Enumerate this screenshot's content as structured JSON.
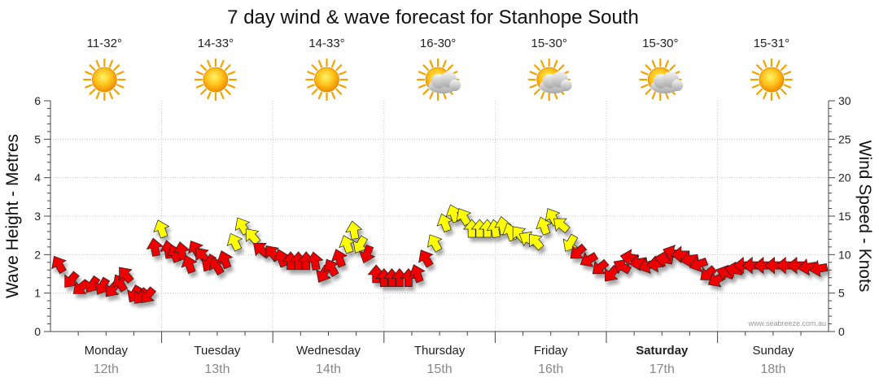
{
  "chart_data": {
    "type": "line",
    "title": "7 day wind & wave forecast for Stanhope South",
    "ylabel_left": "Wave Height - Metres",
    "ylabel_right": "Wind Speed - Knots",
    "ylim_left": [
      0,
      6
    ],
    "ylim_right": [
      0,
      30
    ],
    "yticks_left": [
      "0",
      "1",
      "2",
      "3",
      "4",
      "5",
      "6"
    ],
    "yticks_right": [
      "0",
      "5",
      "10",
      "15",
      "20",
      "25",
      "30"
    ],
    "days": [
      {
        "name": "Monday",
        "date": "12th",
        "temp": "11-32°",
        "weather": "sunny",
        "bold": false
      },
      {
        "name": "Tuesday",
        "date": "13th",
        "temp": "14-33°",
        "weather": "sunny",
        "bold": false
      },
      {
        "name": "Wednesday",
        "date": "14th",
        "temp": "14-33°",
        "weather": "sunny",
        "bold": false
      },
      {
        "name": "Thursday",
        "date": "15th",
        "temp": "16-30°",
        "weather": "partly-cloudy",
        "bold": false
      },
      {
        "name": "Friday",
        "date": "16th",
        "temp": "15-30°",
        "weather": "partly-cloudy",
        "bold": false
      },
      {
        "name": "Saturday",
        "date": "17th",
        "temp": "15-30°",
        "weather": "partly-cloudy",
        "bold": true
      },
      {
        "name": "Sunday",
        "date": "18th",
        "temp": "15-31°",
        "weather": "sunny",
        "bold": false
      }
    ],
    "series": [
      {
        "name": "Wind speed (knots)",
        "color_low": "#ee0000",
        "color_high": "#ffff00",
        "points": [
          {
            "t": 0.08,
            "v": 8.6,
            "dir": -30
          },
          {
            "t": 0.19,
            "v": 6.8,
            "dir": -140
          },
          {
            "t": 0.28,
            "v": 5.8,
            "dir": -130
          },
          {
            "t": 0.38,
            "v": 6.2,
            "dir": -145
          },
          {
            "t": 0.47,
            "v": 6.0,
            "dir": -150
          },
          {
            "t": 0.56,
            "v": 5.6,
            "dir": -140
          },
          {
            "t": 0.63,
            "v": 6.2,
            "dir": -30
          },
          {
            "t": 0.68,
            "v": 7.3,
            "dir": -40
          },
          {
            "t": 0.76,
            "v": 5.0,
            "dir": -150
          },
          {
            "t": 0.82,
            "v": 4.7,
            "dir": -140
          },
          {
            "t": 0.88,
            "v": 4.8,
            "dir": -140
          },
          {
            "t": 0.94,
            "v": 10.8,
            "dir": -10
          },
          {
            "t": 1.0,
            "v": 13.2,
            "dir": -20
          },
          {
            "t": 1.06,
            "v": 10.5,
            "dir": -10
          },
          {
            "t": 1.12,
            "v": 10.0,
            "dir": -20
          },
          {
            "t": 1.18,
            "v": 10.3,
            "dir": -10
          },
          {
            "t": 1.25,
            "v": 8.6,
            "dir": -20
          },
          {
            "t": 1.31,
            "v": 10.6,
            "dir": -30
          },
          {
            "t": 1.37,
            "v": 9.8,
            "dir": -40
          },
          {
            "t": 1.43,
            "v": 9.0,
            "dir": -150
          },
          {
            "t": 1.5,
            "v": 8.4,
            "dir": -30
          },
          {
            "t": 1.57,
            "v": 9.2,
            "dir": -20
          },
          {
            "t": 1.66,
            "v": 11.5,
            "dir": -25
          },
          {
            "t": 1.73,
            "v": 13.6,
            "dir": -30
          },
          {
            "t": 1.82,
            "v": 12.3,
            "dir": -40
          },
          {
            "t": 1.9,
            "v": 10.6,
            "dir": -50
          },
          {
            "t": 2.0,
            "v": 10.1,
            "dir": -40
          },
          {
            "t": 2.08,
            "v": 9.4,
            "dir": -20
          },
          {
            "t": 2.16,
            "v": 9.0,
            "dir": 0
          },
          {
            "t": 2.23,
            "v": 9.0,
            "dir": 0
          },
          {
            "t": 2.3,
            "v": 9.0,
            "dir": 0
          },
          {
            "t": 2.38,
            "v": 9.0,
            "dir": -10
          },
          {
            "t": 2.46,
            "v": 7.6,
            "dir": -150
          },
          {
            "t": 2.53,
            "v": 8.2,
            "dir": -30
          },
          {
            "t": 2.6,
            "v": 9.4,
            "dir": -20
          },
          {
            "t": 2.67,
            "v": 11.2,
            "dir": -20
          },
          {
            "t": 2.73,
            "v": 13.0,
            "dir": -10
          },
          {
            "t": 2.79,
            "v": 11.4,
            "dir": -150
          },
          {
            "t": 2.85,
            "v": 10.2,
            "dir": -160
          },
          {
            "t": 2.93,
            "v": 7.3,
            "dir": 0
          },
          {
            "t": 3.0,
            "v": 6.8,
            "dir": 0
          },
          {
            "t": 3.07,
            "v": 6.8,
            "dir": 0
          },
          {
            "t": 3.14,
            "v": 6.8,
            "dir": 0
          },
          {
            "t": 3.22,
            "v": 6.8,
            "dir": 0
          },
          {
            "t": 3.3,
            "v": 7.4,
            "dir": -20
          },
          {
            "t": 3.38,
            "v": 9.4,
            "dir": -30
          },
          {
            "t": 3.46,
            "v": 11.4,
            "dir": -30
          },
          {
            "t": 3.55,
            "v": 14.0,
            "dir": -20
          },
          {
            "t": 3.63,
            "v": 15.2,
            "dir": -20
          },
          {
            "t": 3.72,
            "v": 14.8,
            "dir": -30
          },
          {
            "t": 3.79,
            "v": 13.2,
            "dir": 0
          },
          {
            "t": 3.86,
            "v": 13.2,
            "dir": 0
          },
          {
            "t": 3.93,
            "v": 13.2,
            "dir": 0
          },
          {
            "t": 4.0,
            "v": 13.2,
            "dir": -10
          },
          {
            "t": 4.07,
            "v": 13.6,
            "dir": -10
          },
          {
            "t": 4.14,
            "v": 12.8,
            "dir": -20
          },
          {
            "t": 4.22,
            "v": 12.6,
            "dir": -40
          },
          {
            "t": 4.3,
            "v": 12.0,
            "dir": -60
          },
          {
            "t": 4.37,
            "v": 11.6,
            "dir": -40
          },
          {
            "t": 4.44,
            "v": 13.6,
            "dir": -20
          },
          {
            "t": 4.52,
            "v": 14.8,
            "dir": -30
          },
          {
            "t": 4.6,
            "v": 13.8,
            "dir": -50
          },
          {
            "t": 4.68,
            "v": 11.6,
            "dir": -150
          },
          {
            "t": 4.75,
            "v": 10.4,
            "dir": -130
          },
          {
            "t": 4.85,
            "v": 9.4,
            "dir": -120
          },
          {
            "t": 4.95,
            "v": 8.4,
            "dir": -130
          },
          {
            "t": 5.05,
            "v": 7.6,
            "dir": -140
          },
          {
            "t": 5.15,
            "v": 8.4,
            "dir": -60
          },
          {
            "t": 5.22,
            "v": 9.6,
            "dir": -80
          },
          {
            "t": 5.3,
            "v": 9.0,
            "dir": -100
          },
          {
            "t": 5.38,
            "v": 8.6,
            "dir": -110
          },
          {
            "t": 5.46,
            "v": 8.8,
            "dir": -100
          },
          {
            "t": 5.53,
            "v": 9.4,
            "dir": -80
          },
          {
            "t": 5.6,
            "v": 10.2,
            "dir": -70
          },
          {
            "t": 5.68,
            "v": 10.0,
            "dir": -90
          },
          {
            "t": 5.76,
            "v": 9.4,
            "dir": -100
          },
          {
            "t": 5.84,
            "v": 8.8,
            "dir": -110
          },
          {
            "t": 5.92,
            "v": 7.6,
            "dir": -130
          },
          {
            "t": 6.0,
            "v": 6.8,
            "dir": -120
          },
          {
            "t": 6.08,
            "v": 7.6,
            "dir": -70
          },
          {
            "t": 6.16,
            "v": 8.0,
            "dir": -80
          },
          {
            "t": 6.24,
            "v": 8.6,
            "dir": -90
          },
          {
            "t": 6.32,
            "v": 8.6,
            "dir": -90
          },
          {
            "t": 6.42,
            "v": 8.6,
            "dir": -90
          },
          {
            "t": 6.52,
            "v": 8.6,
            "dir": -90
          },
          {
            "t": 6.62,
            "v": 8.6,
            "dir": -90
          },
          {
            "t": 6.72,
            "v": 8.6,
            "dir": -90
          },
          {
            "t": 6.82,
            "v": 8.4,
            "dir": -100
          },
          {
            "t": 6.92,
            "v": 8.2,
            "dir": -100
          }
        ]
      }
    ],
    "legend": "none",
    "grid": true
  },
  "credit": "www.seabreeze.com.au"
}
